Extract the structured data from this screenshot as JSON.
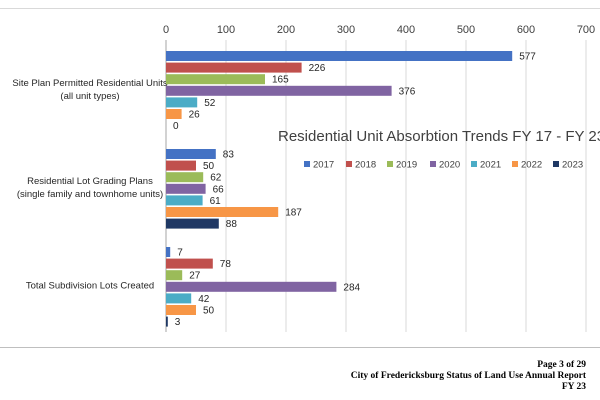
{
  "chart_data": {
    "type": "bar",
    "orientation": "horizontal",
    "title": "Residential Unit Absorbtion Trends FY 17 - FY 23",
    "categories": [
      [
        "Site Plan Permitted Residential Units",
        "(all unit types)"
      ],
      [
        "Residential Lot Grading Plans",
        "(single family and townhome units)"
      ],
      [
        "Total Subdivision  Lots Created"
      ]
    ],
    "xlim": [
      0,
      700
    ],
    "xticks": [
      "0",
      "100",
      "200",
      "300",
      "400",
      "500",
      "600",
      "700"
    ],
    "grid": true,
    "legend_position": "right-middle",
    "series": [
      {
        "name": "2017",
        "color": "#4472C4",
        "values": [
          577,
          83,
          7
        ]
      },
      {
        "name": "2018",
        "color": "#C0504D",
        "values": [
          226,
          50,
          78
        ]
      },
      {
        "name": "2019",
        "color": "#9BBB59",
        "values": [
          165,
          62,
          27
        ]
      },
      {
        "name": "2020",
        "color": "#8064A2",
        "values": [
          376,
          66,
          284
        ]
      },
      {
        "name": "2021",
        "color": "#4BACC6",
        "values": [
          52,
          61,
          42
        ]
      },
      {
        "name": "2022",
        "color": "#F79646",
        "values": [
          26,
          187,
          50
        ]
      },
      {
        "name": "2023",
        "color": "#1F3864",
        "values": [
          0,
          88,
          3
        ]
      }
    ]
  },
  "footer": {
    "page": "Page 3 of 29",
    "report": "City of Fredericksburg Status of Land Use Annual Report",
    "fy": "FY 23"
  }
}
